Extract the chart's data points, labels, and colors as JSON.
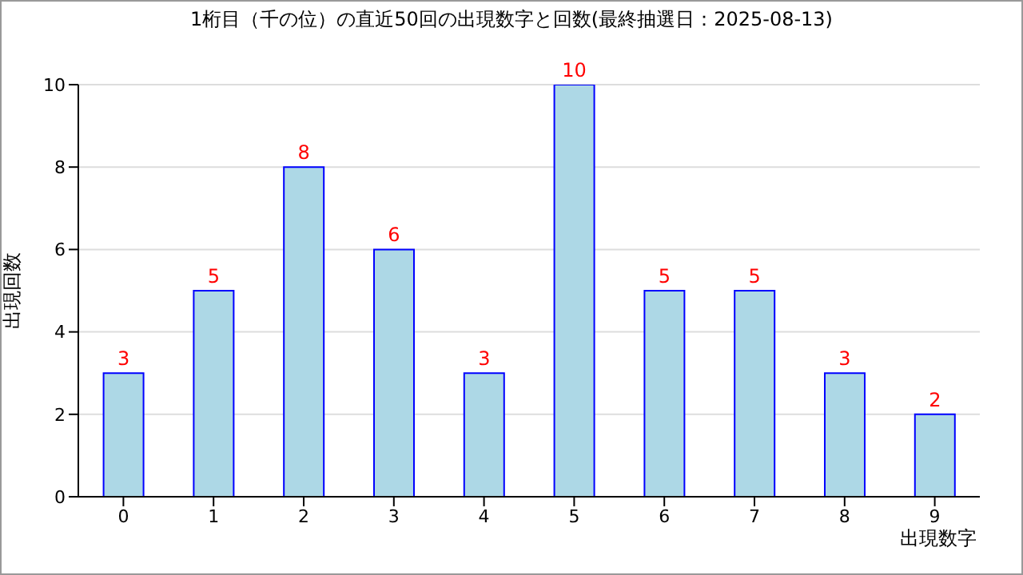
{
  "chart_data": {
    "type": "bar",
    "title": "1桁目（千の位）の直近50回の出現数字と回数(最終抽選日：2025-08-13)",
    "xlabel": "出現数字",
    "ylabel": "出現回数",
    "categories": [
      "0",
      "1",
      "2",
      "3",
      "4",
      "5",
      "6",
      "7",
      "8",
      "9"
    ],
    "values": [
      3,
      5,
      8,
      6,
      3,
      10,
      5,
      5,
      3,
      2
    ],
    "color": "#add8e6",
    "ylim": [
      0,
      10
    ],
    "yticks": [
      0,
      2,
      4,
      6,
      8,
      10
    ],
    "grid": "y",
    "data_labels": true
  }
}
